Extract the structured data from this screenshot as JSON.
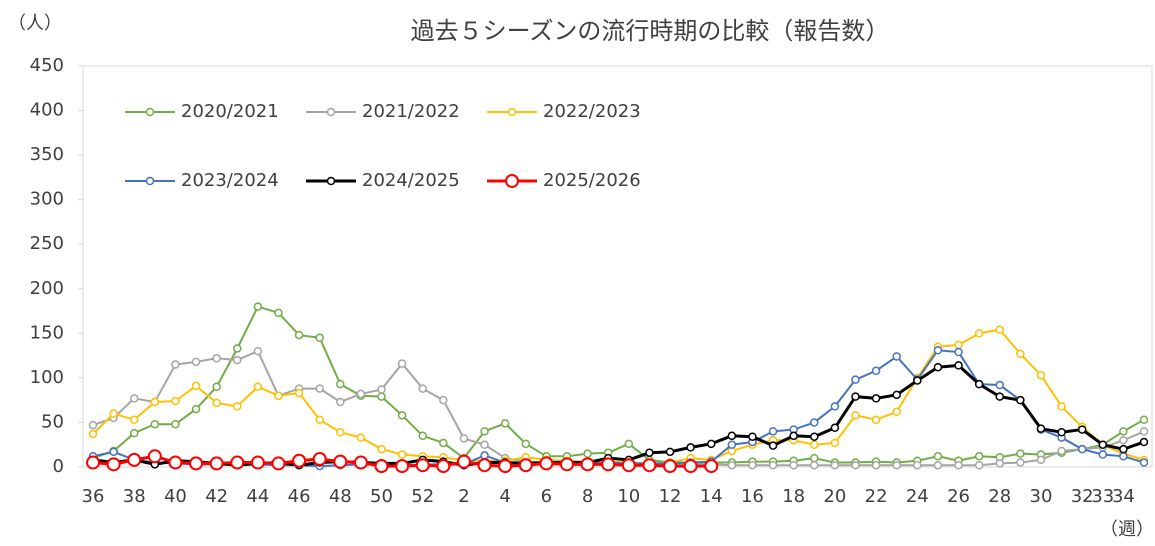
{
  "chart_data": {
    "type": "line",
    "title": "過去５シーズンの流行時期の比較（報告数）",
    "y_unit": "（人）",
    "x_unit": "（週）",
    "categories": [
      "36",
      null,
      "38",
      null,
      "40",
      null,
      "42",
      null,
      "44",
      null,
      "46",
      null,
      "48",
      null,
      "50",
      null,
      "52",
      null,
      "2",
      null,
      "4",
      null,
      "6",
      null,
      "8",
      null,
      "10",
      null,
      "12",
      null,
      "14",
      null,
      "16",
      null,
      "18",
      null,
      "20",
      null,
      "22",
      null,
      "24",
      null,
      "26",
      null,
      "28",
      null,
      "30",
      null,
      "32",
      "33",
      "34",
      null
    ],
    "ylim": [
      0,
      450
    ],
    "yticks": [
      0,
      50,
      100,
      150,
      200,
      250,
      300,
      350,
      400,
      450
    ],
    "grid": false,
    "legend": "top-left",
    "series": [
      {
        "name": "2020/2021",
        "color": "#70ad47",
        "values": [
          10,
          18,
          38,
          48,
          48,
          65,
          90,
          133,
          180,
          173,
          148,
          145,
          93,
          80,
          79,
          58,
          35,
          27,
          10,
          40,
          49,
          26,
          12,
          12,
          15,
          16,
          26,
          8,
          5,
          5,
          5,
          5,
          6,
          6,
          7,
          10,
          5,
          5,
          6,
          5,
          7,
          12,
          7,
          12,
          11,
          15,
          14,
          16,
          20,
          25,
          40,
          53
        ]
      },
      {
        "name": "2021/2022",
        "color": "#a5a5a5",
        "values": [
          47,
          55,
          77,
          73,
          115,
          118,
          122,
          120,
          130,
          80,
          88,
          88,
          73,
          82,
          87,
          116,
          88,
          75,
          32,
          25,
          10,
          6,
          5,
          4,
          4,
          4,
          4,
          4,
          3,
          3,
          3,
          2,
          2,
          2,
          2,
          2,
          2,
          2,
          2,
          2,
          2,
          2,
          2,
          2,
          4,
          5,
          8,
          18,
          20,
          22,
          30,
          40
        ]
      },
      {
        "name": "2022/2023",
        "color": "#ffc000",
        "values": [
          37,
          60,
          53,
          73,
          74,
          91,
          72,
          68,
          90,
          80,
          83,
          53,
          39,
          33,
          20,
          14,
          12,
          11,
          7,
          7,
          7,
          11,
          8,
          7,
          6,
          6,
          5,
          4,
          5,
          10,
          8,
          18,
          25,
          30,
          30,
          25,
          27,
          58,
          53,
          62,
          100,
          135,
          137,
          150,
          154,
          127,
          103,
          68,
          45,
          25,
          15,
          8
        ]
      },
      {
        "name": "2023/2024",
        "color": "#4472c4",
        "values": [
          12,
          17,
          8,
          5,
          4,
          3,
          3,
          3,
          3,
          2,
          2,
          1,
          2,
          3,
          3,
          2,
          3,
          3,
          3,
          13,
          5,
          5,
          5,
          5,
          5,
          5,
          4,
          4,
          4,
          5,
          6,
          25,
          28,
          40,
          42,
          50,
          68,
          98,
          108,
          124,
          98,
          131,
          129,
          93,
          92,
          75,
          42,
          33,
          20,
          14,
          12,
          5
        ]
      },
      {
        "name": "2024/2025",
        "color": "#000000",
        "values": [
          8,
          5,
          8,
          3,
          7,
          6,
          4,
          2,
          4,
          5,
          2,
          5,
          6,
          5,
          4,
          4,
          8,
          6,
          2,
          5,
          5,
          4,
          5,
          5,
          5,
          10,
          8,
          16,
          17,
          22,
          26,
          35,
          34,
          24,
          35,
          34,
          44,
          79,
          77,
          81,
          97,
          112,
          114,
          93,
          79,
          75,
          43,
          39,
          42,
          25,
          20,
          28
        ]
      },
      {
        "name": "2025/2026",
        "color": "#ff0000",
        "values": [
          5,
          3,
          8,
          12,
          5,
          4,
          4,
          5,
          5,
          4,
          7,
          9,
          6,
          5,
          1,
          1,
          2,
          1,
          6,
          2,
          1,
          2,
          4,
          3,
          3,
          3,
          2,
          2,
          1,
          1,
          1,
          null,
          null,
          null,
          null,
          null,
          null,
          null,
          null,
          null,
          null,
          null,
          null,
          null,
          null,
          null,
          null,
          null,
          null,
          null,
          null,
          null
        ]
      }
    ]
  }
}
